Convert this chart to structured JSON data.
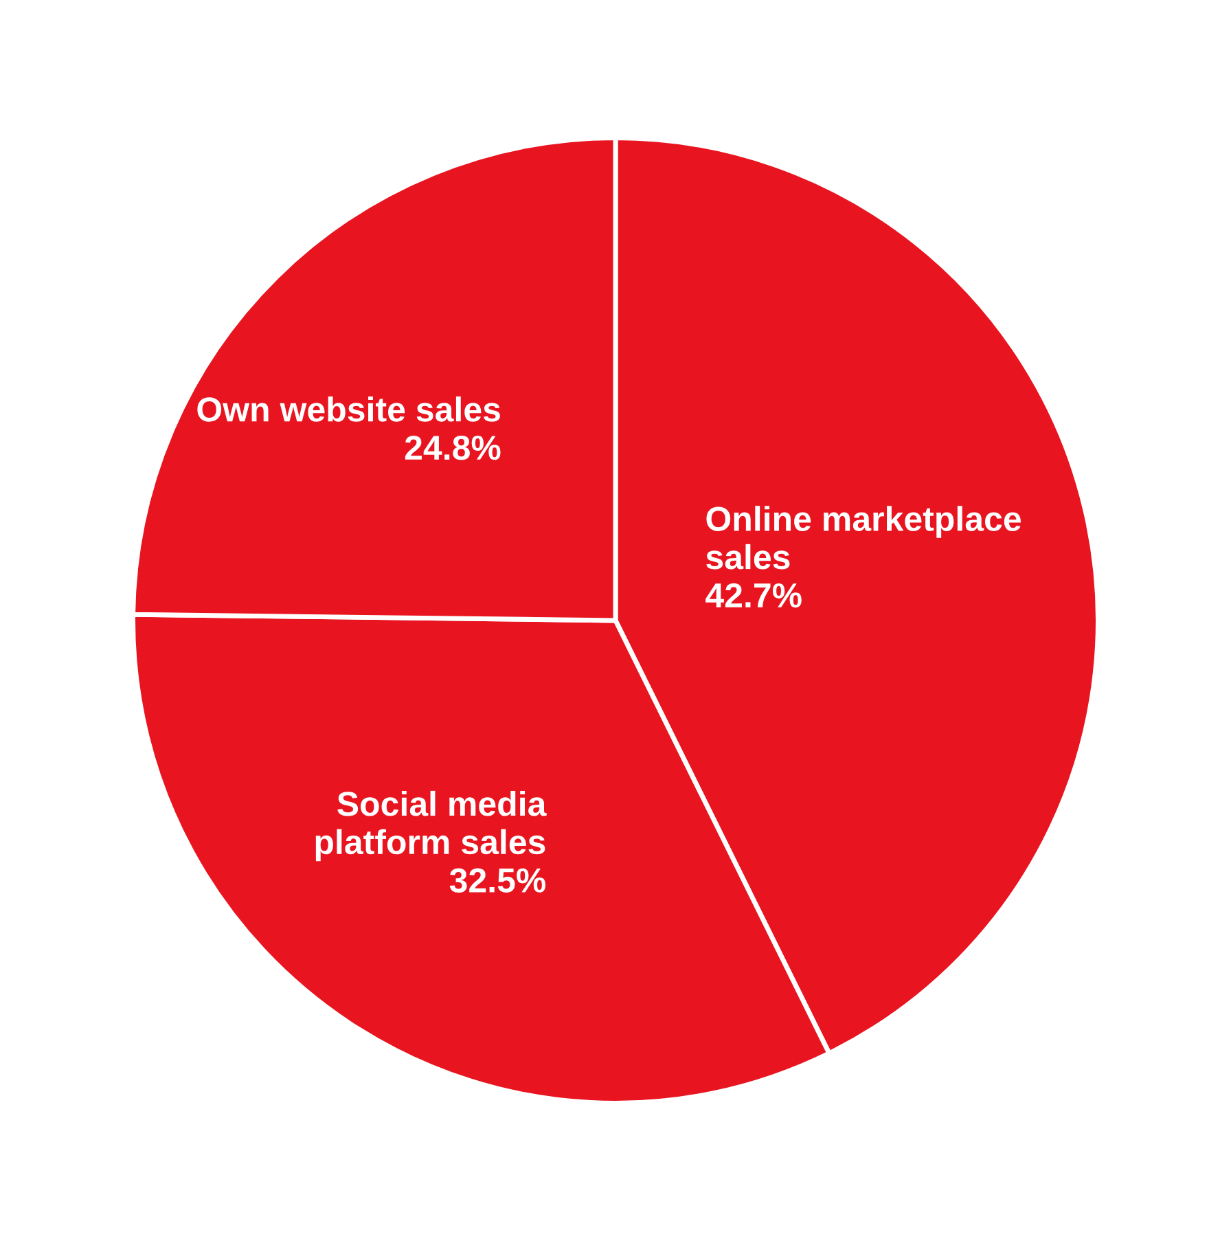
{
  "chart_data": {
    "type": "pie",
    "categories": [
      "Online marketplace sales",
      "Social media platform sales",
      "Own website sales"
    ],
    "values": [
      42.7,
      32.5,
      24.8
    ],
    "value_labels": [
      "42.7%",
      "32.5%",
      "24.8%"
    ],
    "colors": [
      "#e8141f",
      "#e8141f",
      "#e8141f"
    ],
    "legend": false
  }
}
